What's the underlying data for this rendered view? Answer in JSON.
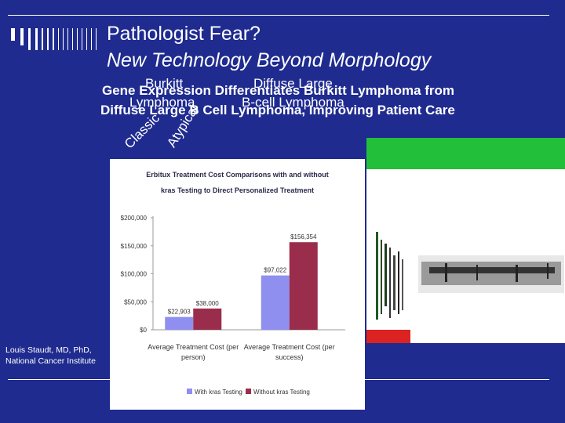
{
  "title_line1": "Pathologist Fear?",
  "title_line2": "New Technology Beyond Morphology",
  "overlay": {
    "burkitt_1": "Burkitt",
    "burkitt_2": "Lymphoma",
    "diffuse_1": "Diffuse Large",
    "diffuse_2": "B-cell Lymphoma",
    "classic": "Classic",
    "atypical": "Atypical"
  },
  "headline": {
    "line1": "Gene Expression Differentiates Burkitt Lymphoma from",
    "line2": "Diffuse Large B Cell Lymphoma, Improving Patient Care"
  },
  "credit": {
    "line1": "Louis Staudt, MD, PhD,",
    "line2": "National Cancer Institute"
  },
  "colors": {
    "background": "#1f2b8f",
    "with_kras": "#8f8ff0",
    "without_kras": "#9b2d4c",
    "heatmap_green": "#22c03a",
    "heatmap_red": "#dd2222"
  },
  "chart_data": {
    "type": "bar",
    "title_line1": "Erbitux Treatment Cost Comparisons with and without",
    "title_line2": "kras Testing to Direct Personalized Treatment",
    "categories": [
      "Average Treatment Cost (per person)",
      "Average Treatment Cost (per success)"
    ],
    "category_lines": [
      [
        "Average Treatment Cost (per",
        "person)"
      ],
      [
        "Average Treatment Cost (per",
        "success)"
      ]
    ],
    "series": [
      {
        "name": "With kras Testing",
        "values": [
          22903,
          97022
        ],
        "labels": [
          "$22,903",
          "$97,022"
        ]
      },
      {
        "name": "Without kras Testing",
        "values": [
          38000,
          156354
        ],
        "labels": [
          "$38,000",
          "$156,354"
        ]
      }
    ],
    "ylim": [
      0,
      200000
    ],
    "yticks": [
      0,
      50000,
      100000,
      150000,
      200000
    ],
    "ytick_labels": [
      "$0",
      "$50,000",
      "$100,000",
      "$150,000",
      "$200,000"
    ],
    "grid": false,
    "legend_position": "bottom"
  }
}
